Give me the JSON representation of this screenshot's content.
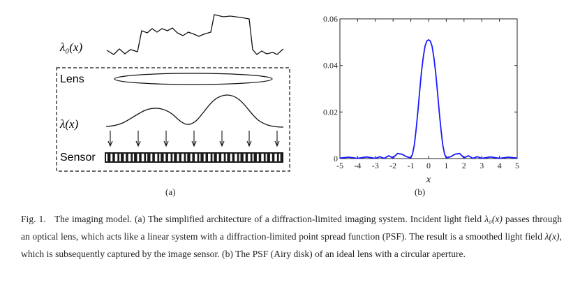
{
  "panel_a": {
    "lambda0_label": "λ₀(x)",
    "lens_label": "Lens",
    "lambda_label": "λ(x)",
    "sensor_label": "Sensor",
    "sublabel": "(a)"
  },
  "panel_b": {
    "sublabel": "(b)",
    "xlabel": "x"
  },
  "chart_data": {
    "type": "line",
    "title": "",
    "xlabel": "x",
    "ylabel": "",
    "xlim": [
      -5,
      5
    ],
    "ylim": [
      0,
      0.06
    ],
    "xticks": [
      -5,
      -4,
      -3,
      -2,
      -1,
      0,
      1,
      2,
      3,
      4,
      5
    ],
    "yticks": [
      0,
      0.02,
      0.04,
      0.06
    ],
    "ytick_labels": [
      "0",
      "0.02",
      "0.04",
      "0.06"
    ],
    "grid": false,
    "series": [
      {
        "color": "#1a1aff",
        "x": [
          -5,
          -4.5,
          -4,
          -3.5,
          -3,
          -2.75,
          -2.5,
          -2.25,
          -2,
          -1.75,
          -1.5,
          -1.25,
          -1,
          -0.9,
          -0.8,
          -0.7,
          -0.6,
          -0.5,
          -0.4,
          -0.3,
          -0.2,
          -0.1,
          0,
          0.1,
          0.2,
          0.3,
          0.4,
          0.5,
          0.6,
          0.7,
          0.8,
          0.9,
          1,
          1.25,
          1.5,
          1.75,
          2,
          2.25,
          2.5,
          2.75,
          3,
          3.5,
          4,
          4.5,
          5
        ],
        "y": [
          0.0002,
          0.0006,
          0.0001,
          0.0007,
          0.0001,
          0.0008,
          0.0001,
          0.0012,
          0.0003,
          0.0022,
          0.0019,
          0.0008,
          0.0003,
          0.002,
          0.006,
          0.0125,
          0.0205,
          0.029,
          0.037,
          0.0435,
          0.0482,
          0.0505,
          0.051,
          0.0505,
          0.0482,
          0.0435,
          0.037,
          0.029,
          0.0205,
          0.0125,
          0.006,
          0.002,
          0.0003,
          0.0008,
          0.0019,
          0.0022,
          0.0003,
          0.0012,
          0.0001,
          0.0008,
          0.0001,
          0.0007,
          0.0001,
          0.0006,
          0.0002
        ]
      }
    ]
  },
  "caption": {
    "fig_label": "Fig. 1.",
    "t1": "The imaging model. (a) The simplified architecture of a diffraction-limited imaging system. Incident light field ",
    "m1": "λ₀(x)",
    "t2": " passes through an optical lens, which acts like a linear system with a diffraction-limited point spread function (PSF). The result is a smoothed light field ",
    "m2": "λ(x)",
    "t3": ", which is subsequently captured by the image sensor. (b) The PSF (Airy disk) of an ideal lens with a circular aperture."
  }
}
